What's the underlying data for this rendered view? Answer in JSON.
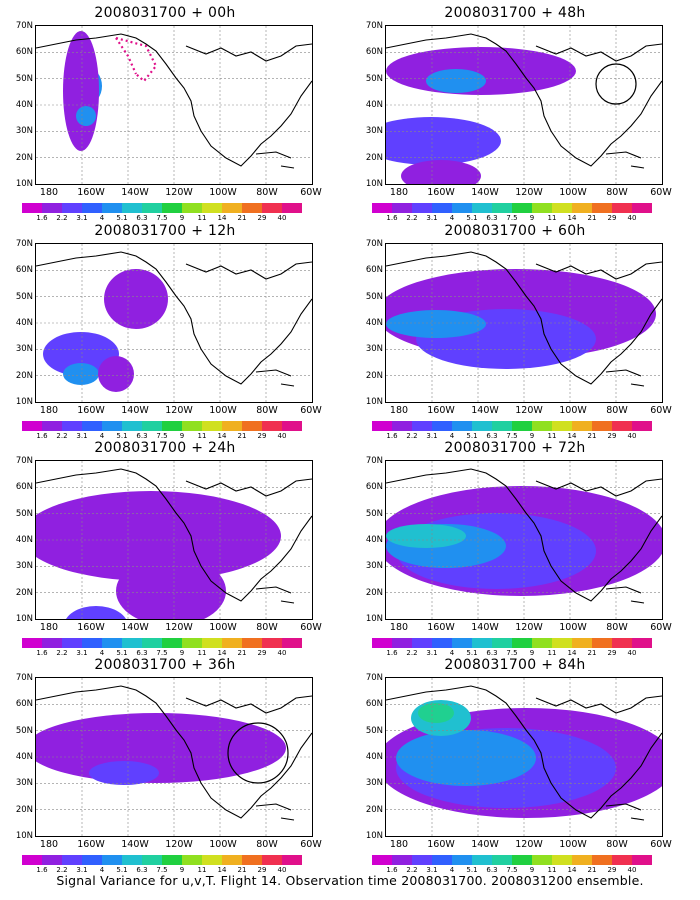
{
  "caption": "Signal Variance for u,v,T. Flight 14. Observation time 2008031700. 2008031200 ensemble.",
  "panels": [
    {
      "title": "2008031700 + 00h",
      "col": 0,
      "row": 0,
      "zones": [
        [
          [
            60,
            52,
            18,
            14,
            3
          ],
          [
            58,
            40,
            28,
            12,
            2
          ],
          [
            65,
            45,
            60,
            18,
            1
          ],
          [
            90,
            50,
            10,
            10,
            3
          ]
        ]
      ],
      "circle": null,
      "track": true
    },
    {
      "title": "2008031700 + 48h",
      "col": 1,
      "row": 0,
      "zones": [
        [
          [
            45,
            95,
            24,
            95,
            1
          ],
          [
            115,
            45,
            24,
            70,
            2
          ],
          [
            55,
            70,
            12,
            30,
            3
          ],
          [
            195,
            60,
            32,
            75,
            2
          ],
          [
            200,
            48,
            14,
            28,
            3
          ],
          [
            150,
            55,
            16,
            40,
            1
          ]
        ]
      ],
      "circle": [
        230,
        58,
        20
      ],
      "track": false
    },
    {
      "title": "2008031700 + 12h",
      "col": 0,
      "row": 1,
      "zones": [
        [
          [
            55,
            100,
            30,
            32,
            1
          ],
          [
            110,
            45,
            22,
            38,
            2
          ],
          [
            130,
            45,
            11,
            18,
            3
          ],
          [
            130,
            80,
            18,
            18,
            1
          ],
          [
            195,
            95,
            10,
            16,
            1
          ]
        ]
      ],
      "circle": null,
      "track": false
    },
    {
      "title": "2008031700 + 60h",
      "col": 1,
      "row": 1,
      "zones": [
        [
          [
            70,
            130,
            45,
            140,
            1
          ],
          [
            95,
            120,
            30,
            90,
            2
          ],
          [
            80,
            50,
            14,
            50,
            3
          ],
          [
            215,
            70,
            32,
            75,
            2
          ],
          [
            210,
            50,
            16,
            35,
            3
          ],
          [
            255,
            45,
            18,
            30,
            4
          ]
        ]
      ],
      "circle": null,
      "track": false
    },
    {
      "title": "2008031700 + 24h",
      "col": 0,
      "row": 2,
      "zones": [
        [
          [
            75,
            115,
            45,
            130,
            1
          ],
          [
            130,
            135,
            35,
            55,
            1
          ],
          [
            165,
            60,
            20,
            32,
            2
          ],
          [
            175,
            55,
            10,
            16,
            3
          ]
        ]
      ],
      "circle": null,
      "track": false
    },
    {
      "title": "2008031700 + 72h",
      "col": 1,
      "row": 2,
      "zones": [
        [
          [
            80,
            135,
            55,
            145,
            1
          ],
          [
            90,
            110,
            38,
            100,
            2
          ],
          [
            85,
            60,
            22,
            60,
            3
          ],
          [
            75,
            40,
            12,
            40,
            4
          ],
          [
            225,
            75,
            45,
            80,
            2
          ],
          [
            230,
            60,
            30,
            50,
            3
          ],
          [
            250,
            45,
            18,
            30,
            5
          ]
        ]
      ],
      "circle": null,
      "track": false
    },
    {
      "title": "2008031700 + 36h",
      "col": 0,
      "row": 3,
      "zones": [
        [
          [
            70,
            120,
            35,
            130,
            1
          ],
          [
            95,
            88,
            12,
            35,
            2
          ],
          [
            200,
            60,
            25,
            55,
            1
          ],
          [
            175,
            50,
            10,
            16,
            2
          ]
        ]
      ],
      "circle": [
        222,
        75,
        30
      ],
      "track": false
    },
    {
      "title": "2008031700 + 84h",
      "col": 1,
      "row": 3,
      "zones": [
        [
          [
            85,
            140,
            55,
            150,
            1
          ],
          [
            90,
            120,
            40,
            110,
            2
          ],
          [
            80,
            80,
            28,
            70,
            3
          ],
          [
            40,
            55,
            18,
            30,
            4
          ],
          [
            35,
            50,
            10,
            18,
            5
          ],
          [
            210,
            80,
            40,
            80,
            2
          ],
          [
            225,
            70,
            25,
            55,
            3
          ]
        ]
      ],
      "circle": null,
      "track": false
    }
  ],
  "y_labels": [
    "70N",
    "60N",
    "50N",
    "40N",
    "30N",
    "20N",
    "10N"
  ],
  "x_labels": [
    "180",
    "160W",
    "140W",
    "120W",
    "100W",
    "80W",
    "60W"
  ],
  "colorbar": {
    "labels": [
      "1.6",
      "2.2",
      "3.1",
      "4",
      "5.1",
      "6.3",
      "7.5",
      "9",
      "11",
      "14",
      "21",
      "29",
      "40"
    ],
    "colors": [
      "#d000d0",
      "#9020e0",
      "#6040ff",
      "#3060ff",
      "#2090f0",
      "#20c0d0",
      "#20d0a0",
      "#20d040",
      "#90e020",
      "#d0e020",
      "#f0b020",
      "#f07020",
      "#f03050",
      "#e0108a"
    ]
  },
  "fill_colors": [
    "#ffffff",
    "#9020e0",
    "#6040ff",
    "#2090f0",
    "#20c0d0",
    "#20d090"
  ]
}
